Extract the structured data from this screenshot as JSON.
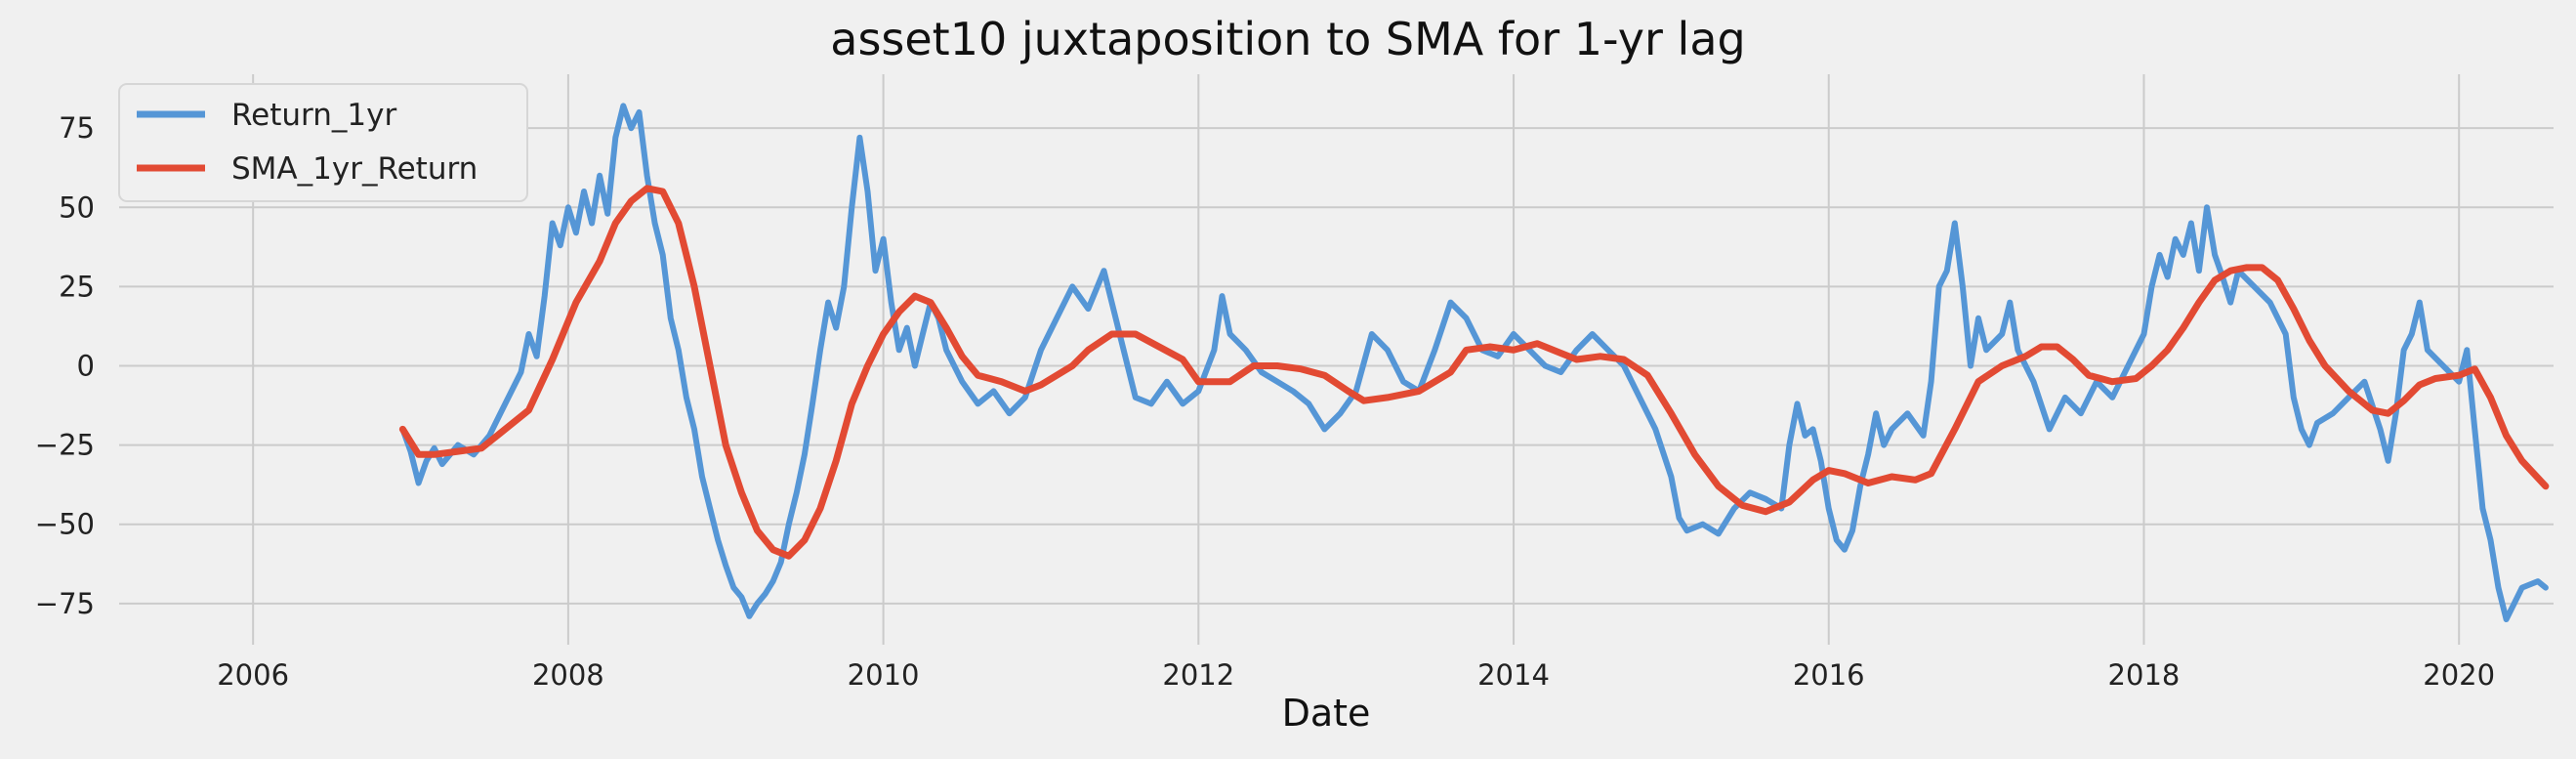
{
  "chart_data": {
    "type": "line",
    "title": "asset10 juxtaposition to SMA for 1-yr lag",
    "xlabel": "Date",
    "ylabel": "",
    "xlim": [
      2005.15,
      2020.6
    ],
    "ylim": [
      -88,
      92
    ],
    "x_ticks": [
      2006,
      2008,
      2010,
      2012,
      2014,
      2016,
      2018,
      2020
    ],
    "y_ticks": [
      -75,
      -50,
      -25,
      0,
      25,
      50,
      75
    ],
    "grid": true,
    "legend_position": "top-left",
    "colors": {
      "background": "#f0f0f0",
      "grid": "#cbcbcb",
      "return": "#5596d6",
      "sma": "#e24a33"
    },
    "series": [
      {
        "name": "Return_1yr",
        "color": "#5596d6",
        "points": [
          [
            2006.95,
            -20
          ],
          [
            2007.0,
            -27
          ],
          [
            2007.05,
            -37
          ],
          [
            2007.1,
            -30
          ],
          [
            2007.15,
            -26
          ],
          [
            2007.2,
            -31
          ],
          [
            2007.3,
            -25
          ],
          [
            2007.4,
            -28
          ],
          [
            2007.5,
            -22
          ],
          [
            2007.6,
            -12
          ],
          [
            2007.7,
            -2
          ],
          [
            2007.75,
            10
          ],
          [
            2007.8,
            3
          ],
          [
            2007.85,
            22
          ],
          [
            2007.9,
            45
          ],
          [
            2007.95,
            38
          ],
          [
            2008.0,
            50
          ],
          [
            2008.05,
            42
          ],
          [
            2008.1,
            55
          ],
          [
            2008.15,
            45
          ],
          [
            2008.2,
            60
          ],
          [
            2008.25,
            48
          ],
          [
            2008.3,
            72
          ],
          [
            2008.35,
            82
          ],
          [
            2008.4,
            75
          ],
          [
            2008.45,
            80
          ],
          [
            2008.5,
            60
          ],
          [
            2008.55,
            45
          ],
          [
            2008.6,
            35
          ],
          [
            2008.65,
            15
          ],
          [
            2008.7,
            5
          ],
          [
            2008.75,
            -10
          ],
          [
            2008.8,
            -20
          ],
          [
            2008.85,
            -35
          ],
          [
            2008.9,
            -45
          ],
          [
            2008.95,
            -55
          ],
          [
            2009.0,
            -63
          ],
          [
            2009.05,
            -70
          ],
          [
            2009.1,
            -73
          ],
          [
            2009.15,
            -79
          ],
          [
            2009.2,
            -75
          ],
          [
            2009.25,
            -72
          ],
          [
            2009.3,
            -68
          ],
          [
            2009.35,
            -62
          ],
          [
            2009.4,
            -50
          ],
          [
            2009.45,
            -40
          ],
          [
            2009.5,
            -28
          ],
          [
            2009.55,
            -12
          ],
          [
            2009.6,
            5
          ],
          [
            2009.65,
            20
          ],
          [
            2009.7,
            12
          ],
          [
            2009.75,
            25
          ],
          [
            2009.8,
            50
          ],
          [
            2009.85,
            72
          ],
          [
            2009.9,
            55
          ],
          [
            2009.95,
            30
          ],
          [
            2010.0,
            40
          ],
          [
            2010.05,
            20
          ],
          [
            2010.1,
            5
          ],
          [
            2010.15,
            12
          ],
          [
            2010.2,
            0
          ],
          [
            2010.25,
            10
          ],
          [
            2010.3,
            20
          ],
          [
            2010.35,
            15
          ],
          [
            2010.4,
            5
          ],
          [
            2010.5,
            -5
          ],
          [
            2010.6,
            -12
          ],
          [
            2010.7,
            -8
          ],
          [
            2010.8,
            -15
          ],
          [
            2010.9,
            -10
          ],
          [
            2011.0,
            5
          ],
          [
            2011.1,
            15
          ],
          [
            2011.2,
            25
          ],
          [
            2011.3,
            18
          ],
          [
            2011.4,
            30
          ],
          [
            2011.5,
            10
          ],
          [
            2011.6,
            -10
          ],
          [
            2011.7,
            -12
          ],
          [
            2011.8,
            -5
          ],
          [
            2011.9,
            -12
          ],
          [
            2012.0,
            -8
          ],
          [
            2012.1,
            5
          ],
          [
            2012.15,
            22
          ],
          [
            2012.2,
            10
          ],
          [
            2012.3,
            5
          ],
          [
            2012.4,
            -2
          ],
          [
            2012.5,
            -5
          ],
          [
            2012.6,
            -8
          ],
          [
            2012.7,
            -12
          ],
          [
            2012.8,
            -20
          ],
          [
            2012.9,
            -15
          ],
          [
            2013.0,
            -8
          ],
          [
            2013.1,
            10
          ],
          [
            2013.2,
            5
          ],
          [
            2013.3,
            -5
          ],
          [
            2013.4,
            -8
          ],
          [
            2013.5,
            5
          ],
          [
            2013.6,
            20
          ],
          [
            2013.7,
            15
          ],
          [
            2013.8,
            5
          ],
          [
            2013.9,
            3
          ],
          [
            2014.0,
            10
          ],
          [
            2014.1,
            5
          ],
          [
            2014.2,
            0
          ],
          [
            2014.3,
            -2
          ],
          [
            2014.4,
            5
          ],
          [
            2014.5,
            10
          ],
          [
            2014.6,
            5
          ],
          [
            2014.7,
            0
          ],
          [
            2014.8,
            -10
          ],
          [
            2014.9,
            -20
          ],
          [
            2015.0,
            -35
          ],
          [
            2015.05,
            -48
          ],
          [
            2015.1,
            -52
          ],
          [
            2015.2,
            -50
          ],
          [
            2015.3,
            -53
          ],
          [
            2015.4,
            -45
          ],
          [
            2015.5,
            -40
          ],
          [
            2015.6,
            -42
          ],
          [
            2015.7,
            -45
          ],
          [
            2015.75,
            -25
          ],
          [
            2015.8,
            -12
          ],
          [
            2015.85,
            -22
          ],
          [
            2015.9,
            -20
          ],
          [
            2015.95,
            -30
          ],
          [
            2016.0,
            -45
          ],
          [
            2016.05,
            -55
          ],
          [
            2016.1,
            -58
          ],
          [
            2016.15,
            -52
          ],
          [
            2016.2,
            -38
          ],
          [
            2016.25,
            -28
          ],
          [
            2016.3,
            -15
          ],
          [
            2016.35,
            -25
          ],
          [
            2016.4,
            -20
          ],
          [
            2016.5,
            -15
          ],
          [
            2016.6,
            -22
          ],
          [
            2016.65,
            -5
          ],
          [
            2016.7,
            25
          ],
          [
            2016.75,
            30
          ],
          [
            2016.8,
            45
          ],
          [
            2016.85,
            25
          ],
          [
            2016.9,
            0
          ],
          [
            2016.95,
            15
          ],
          [
            2017.0,
            5
          ],
          [
            2017.1,
            10
          ],
          [
            2017.15,
            20
          ],
          [
            2017.2,
            5
          ],
          [
            2017.3,
            -5
          ],
          [
            2017.4,
            -20
          ],
          [
            2017.5,
            -10
          ],
          [
            2017.6,
            -15
          ],
          [
            2017.7,
            -5
          ],
          [
            2017.8,
            -10
          ],
          [
            2017.9,
            0
          ],
          [
            2018.0,
            10
          ],
          [
            2018.05,
            25
          ],
          [
            2018.1,
            35
          ],
          [
            2018.15,
            28
          ],
          [
            2018.2,
            40
          ],
          [
            2018.25,
            35
          ],
          [
            2018.3,
            45
          ],
          [
            2018.35,
            30
          ],
          [
            2018.4,
            50
          ],
          [
            2018.45,
            35
          ],
          [
            2018.5,
            28
          ],
          [
            2018.55,
            20
          ],
          [
            2018.6,
            30
          ],
          [
            2018.7,
            25
          ],
          [
            2018.8,
            20
          ],
          [
            2018.9,
            10
          ],
          [
            2018.95,
            -10
          ],
          [
            2019.0,
            -20
          ],
          [
            2019.05,
            -25
          ],
          [
            2019.1,
            -18
          ],
          [
            2019.2,
            -15
          ],
          [
            2019.3,
            -10
          ],
          [
            2019.4,
            -5
          ],
          [
            2019.5,
            -20
          ],
          [
            2019.55,
            -30
          ],
          [
            2019.6,
            -15
          ],
          [
            2019.65,
            5
          ],
          [
            2019.7,
            10
          ],
          [
            2019.75,
            20
          ],
          [
            2019.8,
            5
          ],
          [
            2019.9,
            0
          ],
          [
            2020.0,
            -5
          ],
          [
            2020.05,
            5
          ],
          [
            2020.1,
            -20
          ],
          [
            2020.15,
            -45
          ],
          [
            2020.2,
            -55
          ],
          [
            2020.25,
            -70
          ],
          [
            2020.3,
            -80
          ],
          [
            2020.35,
            -75
          ],
          [
            2020.4,
            -70
          ],
          [
            2020.5,
            -68
          ],
          [
            2020.55,
            -70
          ]
        ]
      },
      {
        "name": "SMA_1yr_Return",
        "color": "#e24a33",
        "points": [
          [
            2006.95,
            -20
          ],
          [
            2007.05,
            -28
          ],
          [
            2007.15,
            -28
          ],
          [
            2007.3,
            -27
          ],
          [
            2007.45,
            -26
          ],
          [
            2007.6,
            -20
          ],
          [
            2007.75,
            -14
          ],
          [
            2007.9,
            2
          ],
          [
            2008.05,
            20
          ],
          [
            2008.2,
            33
          ],
          [
            2008.3,
            45
          ],
          [
            2008.4,
            52
          ],
          [
            2008.5,
            56
          ],
          [
            2008.6,
            55
          ],
          [
            2008.7,
            45
          ],
          [
            2008.8,
            25
          ],
          [
            2008.9,
            0
          ],
          [
            2009.0,
            -25
          ],
          [
            2009.1,
            -40
          ],
          [
            2009.2,
            -52
          ],
          [
            2009.3,
            -58
          ],
          [
            2009.4,
            -60
          ],
          [
            2009.5,
            -55
          ],
          [
            2009.6,
            -45
          ],
          [
            2009.7,
            -30
          ],
          [
            2009.8,
            -12
          ],
          [
            2009.9,
            0
          ],
          [
            2010.0,
            10
          ],
          [
            2010.1,
            17
          ],
          [
            2010.2,
            22
          ],
          [
            2010.3,
            20
          ],
          [
            2010.4,
            12
          ],
          [
            2010.5,
            3
          ],
          [
            2010.6,
            -3
          ],
          [
            2010.75,
            -5
          ],
          [
            2010.9,
            -8
          ],
          [
            2011.0,
            -6
          ],
          [
            2011.2,
            0
          ],
          [
            2011.3,
            5
          ],
          [
            2011.45,
            10
          ],
          [
            2011.6,
            10
          ],
          [
            2011.75,
            6
          ],
          [
            2011.9,
            2
          ],
          [
            2012.0,
            -5
          ],
          [
            2012.2,
            -5
          ],
          [
            2012.35,
            0
          ],
          [
            2012.5,
            0
          ],
          [
            2012.65,
            -1
          ],
          [
            2012.8,
            -3
          ],
          [
            2012.95,
            -8
          ],
          [
            2013.05,
            -11
          ],
          [
            2013.2,
            -10
          ],
          [
            2013.4,
            -8
          ],
          [
            2013.5,
            -5
          ],
          [
            2013.6,
            -2
          ],
          [
            2013.7,
            5
          ],
          [
            2013.85,
            6
          ],
          [
            2014.0,
            5
          ],
          [
            2014.15,
            7
          ],
          [
            2014.3,
            4
          ],
          [
            2014.4,
            2
          ],
          [
            2014.55,
            3
          ],
          [
            2014.7,
            2
          ],
          [
            2014.85,
            -3
          ],
          [
            2015.0,
            -15
          ],
          [
            2015.15,
            -28
          ],
          [
            2015.3,
            -38
          ],
          [
            2015.45,
            -44
          ],
          [
            2015.6,
            -46
          ],
          [
            2015.75,
            -43
          ],
          [
            2015.9,
            -36
          ],
          [
            2016.0,
            -33
          ],
          [
            2016.1,
            -34
          ],
          [
            2016.25,
            -37
          ],
          [
            2016.4,
            -35
          ],
          [
            2016.55,
            -36
          ],
          [
            2016.65,
            -34
          ],
          [
            2016.8,
            -20
          ],
          [
            2016.95,
            -5
          ],
          [
            2017.1,
            0
          ],
          [
            2017.25,
            3
          ],
          [
            2017.35,
            6
          ],
          [
            2017.45,
            6
          ],
          [
            2017.55,
            2
          ],
          [
            2017.65,
            -3
          ],
          [
            2017.8,
            -5
          ],
          [
            2017.95,
            -4
          ],
          [
            2018.05,
            0
          ],
          [
            2018.15,
            5
          ],
          [
            2018.25,
            12
          ],
          [
            2018.35,
            20
          ],
          [
            2018.45,
            27
          ],
          [
            2018.55,
            30
          ],
          [
            2018.65,
            31
          ],
          [
            2018.75,
            31
          ],
          [
            2018.85,
            27
          ],
          [
            2018.95,
            18
          ],
          [
            2019.05,
            8
          ],
          [
            2019.15,
            0
          ],
          [
            2019.3,
            -8
          ],
          [
            2019.45,
            -14
          ],
          [
            2019.55,
            -15
          ],
          [
            2019.65,
            -11
          ],
          [
            2019.75,
            -6
          ],
          [
            2019.85,
            -4
          ],
          [
            2020.0,
            -3
          ],
          [
            2020.1,
            -1
          ],
          [
            2020.2,
            -10
          ],
          [
            2020.3,
            -22
          ],
          [
            2020.4,
            -30
          ],
          [
            2020.55,
            -38
          ]
        ]
      }
    ]
  }
}
